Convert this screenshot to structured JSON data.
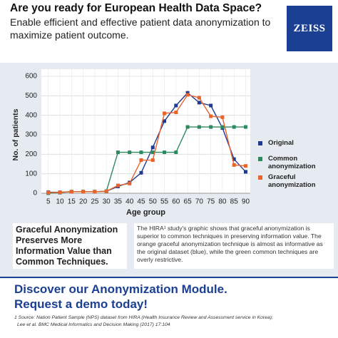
{
  "header": {
    "title": "Are you ready for European Health Data Space?",
    "subtitle": "Enable efficient and effective patient data anonymization to maximize patient outcome.",
    "logo": "ZEISS"
  },
  "chart_data": {
    "type": "line",
    "x_label": "Age group",
    "y_label": "No. of patients",
    "x": [
      5,
      10,
      15,
      20,
      25,
      30,
      35,
      40,
      45,
      50,
      55,
      60,
      65,
      70,
      75,
      80,
      85,
      90
    ],
    "series": [
      {
        "name": "Original",
        "color": "#1f3a8f",
        "values": [
          5,
          5,
          8,
          8,
          8,
          10,
          35,
          55,
          105,
          235,
          370,
          450,
          515,
          465,
          450,
          335,
          175,
          110
        ]
      },
      {
        "name": "Common anonymization",
        "color": "#2e8a5e",
        "values": [
          0,
          3,
          8,
          8,
          8,
          10,
          210,
          210,
          210,
          210,
          210,
          210,
          340,
          340,
          340,
          340,
          340,
          340
        ]
      },
      {
        "name": "Graceful anonymization",
        "color": "#e8642c",
        "values": [
          3,
          5,
          8,
          8,
          8,
          10,
          40,
          50,
          170,
          170,
          410,
          415,
          505,
          490,
          395,
          390,
          145,
          140
        ]
      }
    ],
    "xlim": [
      2,
      92
    ],
    "ylim": [
      0,
      600
    ],
    "xticks": [
      5,
      10,
      15,
      20,
      25,
      30,
      35,
      40,
      45,
      50,
      55,
      60,
      65,
      70,
      75,
      80,
      85,
      90
    ],
    "yticks": [
      0,
      100,
      200,
      300,
      400,
      500,
      600
    ],
    "grid": true,
    "legend": "right"
  },
  "left_box": "Graceful Anonymization Preserves More Information Value than Common Techniques.",
  "right_box": "The HIRA¹ study's graphic shows that graceful anonymization is superior to common techniques in preserving information value. The orange graceful anonymization technique is almost as informative as the original dataset (blue), while the green common techniques are overly restrictive.",
  "cta": [
    "Discover our Anonymization Module.",
    "Request a demo today!"
  ],
  "footnote": [
    "1 Source: Nation Patient Sample (NPS) dataset from HIRA (Health Insurance Review and Assessment service in Korea);",
    "Lee et al. BMC Medical Informatics and Decision Making (2017) 17:104"
  ]
}
